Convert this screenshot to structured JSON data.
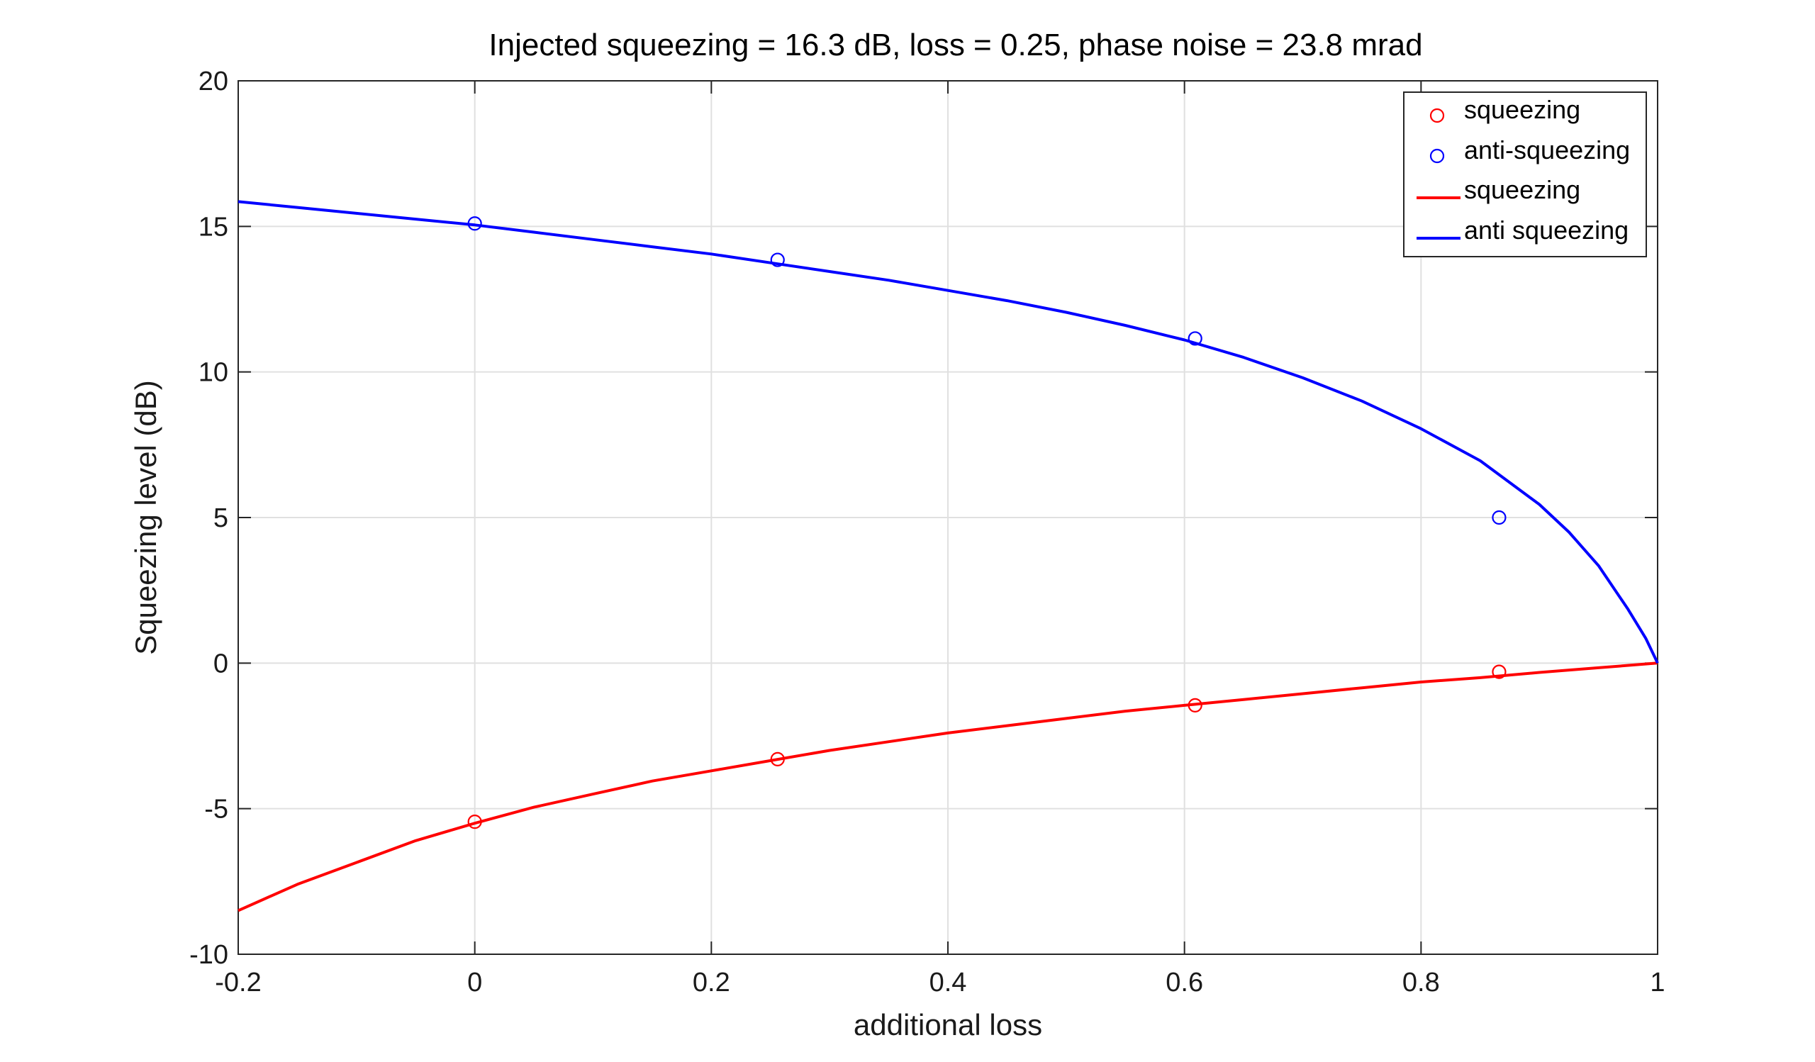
{
  "chart_data": {
    "type": "line",
    "title": "Injected squeezing = 16.3 dB, loss = 0.25, phase noise = 23.8 mrad",
    "xlabel": "additional loss",
    "ylabel": "Squeezing level (dB)",
    "xlim": [
      -0.2,
      1
    ],
    "ylim": [
      -10,
      20
    ],
    "xticks": [
      -0.2,
      0,
      0.2,
      0.4,
      0.6,
      0.8,
      1
    ],
    "xtick_labels": [
      "-0.2",
      "0",
      "0.2",
      "0.4",
      "0.6",
      "0.8",
      "1"
    ],
    "yticks": [
      -10,
      -5,
      0,
      5,
      10,
      15,
      20
    ],
    "ytick_labels": [
      "-10",
      "-5",
      "0",
      "5",
      "10",
      "15",
      "20"
    ],
    "grid": true,
    "legend_position": "top-right",
    "scatter_series": [
      {
        "name": "squeezing",
        "color": "#ff0000",
        "x": [
          0,
          0.256,
          0.609,
          0.866
        ],
        "y": [
          -5.45,
          -3.3,
          -1.45,
          -0.3
        ]
      },
      {
        "name": "anti-squeezing",
        "color": "#0000ff",
        "x": [
          0,
          0.256,
          0.609,
          0.866
        ],
        "y": [
          15.1,
          13.85,
          11.15,
          5.0
        ]
      }
    ],
    "line_series": [
      {
        "name": "squeezing",
        "color": "#ff0000",
        "x": [
          -0.2,
          -0.15,
          -0.1,
          -0.05,
          0,
          0.05,
          0.1,
          0.15,
          0.2,
          0.25,
          0.3,
          0.35,
          0.4,
          0.45,
          0.5,
          0.55,
          0.6,
          0.65,
          0.7,
          0.75,
          0.8,
          0.85,
          0.9,
          0.95,
          1.0
        ],
        "y": [
          -8.5,
          -7.6,
          -6.85,
          -6.1,
          -5.5,
          -4.95,
          -4.5,
          -4.05,
          -3.7,
          -3.35,
          -3.0,
          -2.7,
          -2.4,
          -2.15,
          -1.9,
          -1.65,
          -1.45,
          -1.25,
          -1.05,
          -0.85,
          -0.65,
          -0.5,
          -0.32,
          -0.16,
          0
        ]
      },
      {
        "name": "anti squeezing",
        "color": "#0000ff",
        "x": [
          -0.2,
          -0.15,
          -0.1,
          -0.05,
          0,
          0.05,
          0.1,
          0.15,
          0.2,
          0.25,
          0.3,
          0.35,
          0.4,
          0.45,
          0.5,
          0.55,
          0.6,
          0.65,
          0.7,
          0.75,
          0.8,
          0.85,
          0.9,
          0.925,
          0.95,
          0.975,
          0.99,
          1.0
        ],
        "y": [
          15.85,
          15.65,
          15.45,
          15.25,
          15.05,
          14.8,
          14.55,
          14.3,
          14.05,
          13.75,
          13.45,
          13.15,
          12.8,
          12.45,
          12.05,
          11.6,
          11.1,
          10.5,
          9.8,
          9.0,
          8.05,
          6.95,
          5.45,
          4.5,
          3.35,
          1.85,
          0.85,
          0
        ]
      }
    ],
    "legend": [
      {
        "label": "squeezing",
        "kind": "marker",
        "color": "#ff0000"
      },
      {
        "label": "anti-squeezing",
        "kind": "marker",
        "color": "#0000ff"
      },
      {
        "label": "squeezing",
        "kind": "line",
        "color": "#ff0000"
      },
      {
        "label": "anti squeezing",
        "kind": "line",
        "color": "#0000ff"
      }
    ]
  }
}
